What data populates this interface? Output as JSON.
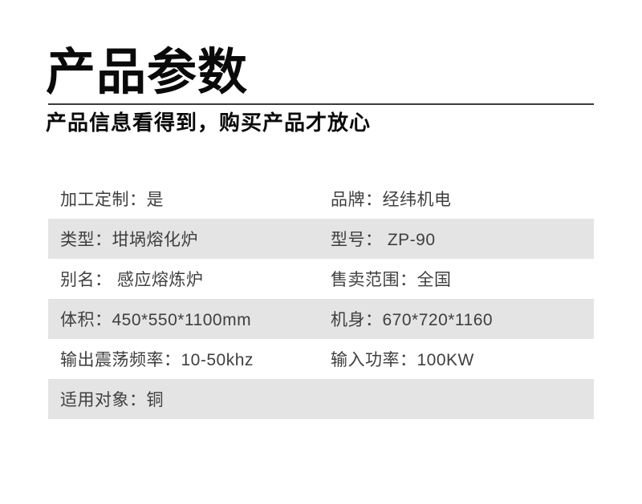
{
  "header": {
    "title": "产品参数",
    "subtitle": "产品信息看得到，购买产品才放心"
  },
  "colors": {
    "title_text": "#0a0a0a",
    "divider": "#3a3a3a",
    "table_text": "#3f3f3f",
    "row_shaded": "#e4e4e4",
    "background": "#ffffff"
  },
  "spec_table": {
    "rows": [
      {
        "left": "加工定制：是",
        "right": "品牌：经纬机电"
      },
      {
        "left": "类型：坩埚熔化炉",
        "right": "型号： ZP-90"
      },
      {
        "left": "别名： 感应熔炼炉",
        "right": "售卖范围：全国"
      },
      {
        "left": "体积：450*550*1100mm",
        "right": "机身：670*720*1160"
      },
      {
        "left": "输出震荡频率：10-50khz",
        "right": "输入功率：100KW"
      },
      {
        "left": "适用对象：铜",
        "right": ""
      }
    ]
  }
}
